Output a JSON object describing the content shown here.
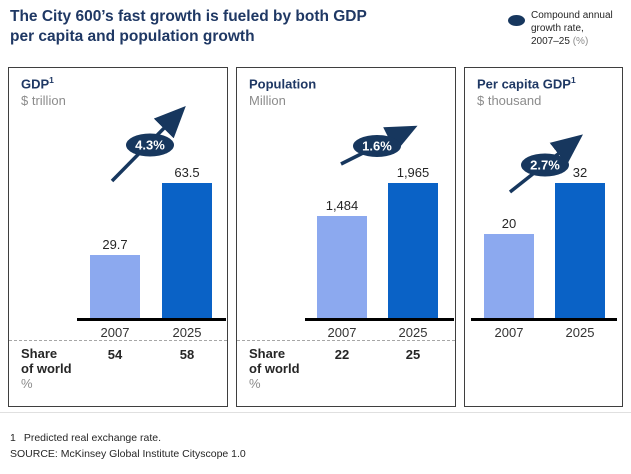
{
  "header": {
    "title": "The City 600’s fast growth is fueled by both GDP\nper capita and population growth",
    "legend": {
      "line1": "Compound annual",
      "line2": "growth rate,",
      "line3": "2007–25",
      "line3_unit": "(%)"
    }
  },
  "colors": {
    "navy": "#17375e",
    "title_navy": "#1f3864",
    "light_bar": "#8ca9ef",
    "dark_bar": "#0a62c6",
    "gray": "#8c8c8c"
  },
  "chart_data": [
    {
      "type": "bar",
      "title": "GDP",
      "title_sup": "1",
      "unit": "$ trillion",
      "categories": [
        "2007",
        "2025"
      ],
      "values": [
        29.7,
        63.5
      ],
      "value_labels": [
        "29.7",
        "63.5"
      ],
      "cagr_label": "4.3%",
      "share_of_world": {
        "label_line1": "Share",
        "label_line2": "of world",
        "unit": "%",
        "values": [
          "54",
          "58"
        ]
      }
    },
    {
      "type": "bar",
      "title": "Population",
      "title_sup": "",
      "unit": "Million",
      "categories": [
        "2007",
        "2025"
      ],
      "values": [
        1484,
        1965
      ],
      "value_labels": [
        "1,484",
        "1,965"
      ],
      "cagr_label": "1.6%",
      "share_of_world": {
        "label_line1": "Share",
        "label_line2": "of world",
        "unit": "%",
        "values": [
          "22",
          "25"
        ]
      }
    },
    {
      "type": "bar",
      "title": "Per capita GDP",
      "title_sup": "1",
      "unit": "$ thousand",
      "categories": [
        "2007",
        "2025"
      ],
      "values": [
        20,
        32
      ],
      "value_labels": [
        "20",
        "32"
      ],
      "cagr_label": "2.7%",
      "share_of_world": null
    }
  ],
  "footer": {
    "footnote_number": "1",
    "footnote_text": "Predicted real exchange rate.",
    "source": "SOURCE: McKinsey Global Institute Cityscope 1.0"
  }
}
